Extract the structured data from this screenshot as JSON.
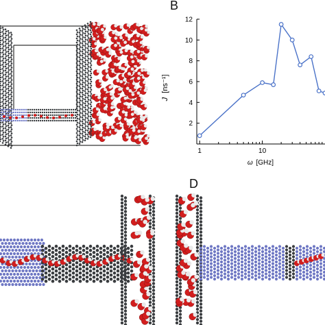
{
  "panels": {
    "b_label": "B",
    "d_label": "D"
  },
  "chart_data": {
    "type": "line",
    "x_scale": "log",
    "xlabel_symbol": "ω",
    "xlabel_unit": "[GHz]",
    "ylabel_symbol": "J",
    "ylabel_unit": "[ns⁻¹]",
    "xlim": [
      0.9,
      100
    ],
    "ylim": [
      0,
      12
    ],
    "x_ticks": [
      1,
      10
    ],
    "x_tick_labels": [
      "1",
      "10"
    ],
    "y_ticks": [
      2,
      4,
      6,
      8,
      10,
      12
    ],
    "y_tick_labels": [
      "2",
      "4",
      "6",
      "8",
      "10",
      "12"
    ],
    "x": [
      1,
      5,
      10,
      15,
      20,
      30,
      40,
      60,
      80,
      100
    ],
    "series": [
      {
        "values": [
          0.8,
          4.7,
          5.9,
          5.7,
          11.5,
          10.0,
          7.6,
          8.4,
          5.1,
          4.9
        ]
      }
    ],
    "grid": false,
    "colors": {
      "line": "#4a72c8",
      "marker_fill": "#ffffff"
    }
  },
  "colors": {
    "carbon": "#3a3d40",
    "nitrogen": "#6f78c4",
    "oxygen": "#d21e1e",
    "hydrogen": "#eaeaea"
  }
}
